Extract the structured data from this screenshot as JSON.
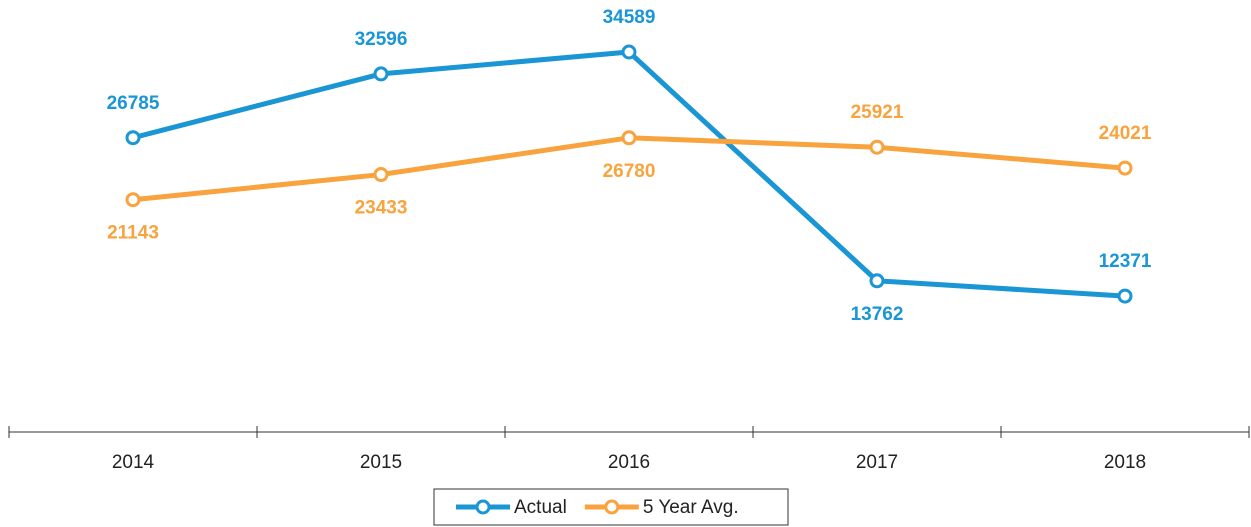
{
  "chart_data": {
    "type": "line",
    "categories": [
      "2014",
      "2015",
      "2016",
      "2017",
      "2018"
    ],
    "series": [
      {
        "name": "Actual",
        "color": "#1a96d4",
        "values": [
          26785,
          32596,
          34589,
          13762,
          12371
        ]
      },
      {
        "name": "5 Year Avg.",
        "color": "#f8a33e",
        "values": [
          21143,
          23433,
          26780,
          25921,
          24021
        ]
      }
    ],
    "legend": "bottom"
  }
}
